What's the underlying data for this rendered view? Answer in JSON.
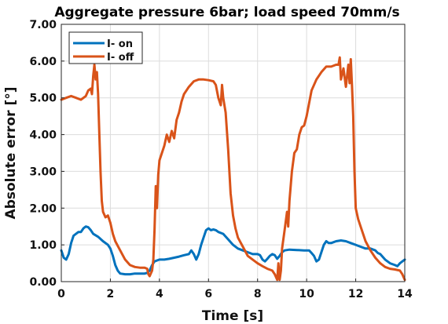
{
  "chart_data": {
    "type": "line",
    "title": "Aggregate pressure 6bar; load speed 70mm/s",
    "xlabel": "Time [s]",
    "ylabel": "Absolute error [°]",
    "xlim": [
      0,
      14
    ],
    "ylim": [
      0,
      7
    ],
    "xticks": [
      0,
      2,
      4,
      6,
      8,
      10,
      12,
      14
    ],
    "xtick_labels": [
      "0",
      "2",
      "4",
      "6",
      "8",
      "10",
      "12",
      "14"
    ],
    "yticks": [
      0,
      1,
      2,
      3,
      4,
      5,
      6,
      7
    ],
    "ytick_labels": [
      "0.00",
      "1.00",
      "2.00",
      "3.00",
      "4.00",
      "5.00",
      "6.00",
      "7.00"
    ],
    "grid": true,
    "legend_position": "top-left",
    "series": [
      {
        "name": "I- on",
        "color": "#0072BD",
        "points": [
          [
            0.0,
            0.85
          ],
          [
            0.1,
            0.65
          ],
          [
            0.2,
            0.6
          ],
          [
            0.3,
            0.75
          ],
          [
            0.4,
            1.05
          ],
          [
            0.5,
            1.25
          ],
          [
            0.6,
            1.3
          ],
          [
            0.7,
            1.35
          ],
          [
            0.8,
            1.35
          ],
          [
            0.9,
            1.45
          ],
          [
            1.0,
            1.5
          ],
          [
            1.1,
            1.48
          ],
          [
            1.2,
            1.4
          ],
          [
            1.3,
            1.3
          ],
          [
            1.5,
            1.22
          ],
          [
            1.7,
            1.1
          ],
          [
            1.9,
            1.0
          ],
          [
            2.0,
            0.9
          ],
          [
            2.1,
            0.7
          ],
          [
            2.2,
            0.45
          ],
          [
            2.3,
            0.3
          ],
          [
            2.4,
            0.22
          ],
          [
            2.6,
            0.2
          ],
          [
            2.8,
            0.2
          ],
          [
            3.0,
            0.22
          ],
          [
            3.2,
            0.22
          ],
          [
            3.4,
            0.22
          ],
          [
            3.5,
            0.24
          ],
          [
            3.6,
            0.3
          ],
          [
            3.7,
            0.45
          ],
          [
            3.8,
            0.55
          ],
          [
            4.0,
            0.6
          ],
          [
            4.2,
            0.6
          ],
          [
            4.4,
            0.62
          ],
          [
            4.6,
            0.65
          ],
          [
            4.8,
            0.68
          ],
          [
            5.0,
            0.72
          ],
          [
            5.2,
            0.75
          ],
          [
            5.3,
            0.85
          ],
          [
            5.4,
            0.75
          ],
          [
            5.5,
            0.6
          ],
          [
            5.6,
            0.75
          ],
          [
            5.7,
            1.0
          ],
          [
            5.8,
            1.2
          ],
          [
            5.9,
            1.4
          ],
          [
            6.0,
            1.45
          ],
          [
            6.1,
            1.4
          ],
          [
            6.2,
            1.42
          ],
          [
            6.3,
            1.4
          ],
          [
            6.4,
            1.35
          ],
          [
            6.6,
            1.3
          ],
          [
            6.8,
            1.15
          ],
          [
            7.0,
            1.0
          ],
          [
            7.2,
            0.9
          ],
          [
            7.4,
            0.85
          ],
          [
            7.6,
            0.8
          ],
          [
            7.8,
            0.75
          ],
          [
            8.0,
            0.75
          ],
          [
            8.1,
            0.72
          ],
          [
            8.2,
            0.6
          ],
          [
            8.3,
            0.55
          ],
          [
            8.4,
            0.62
          ],
          [
            8.5,
            0.7
          ],
          [
            8.6,
            0.75
          ],
          [
            8.7,
            0.72
          ],
          [
            8.8,
            0.62
          ],
          [
            8.9,
            0.7
          ],
          [
            9.0,
            0.8
          ],
          [
            9.1,
            0.85
          ],
          [
            9.3,
            0.87
          ],
          [
            9.6,
            0.86
          ],
          [
            9.9,
            0.85
          ],
          [
            10.1,
            0.85
          ],
          [
            10.2,
            0.78
          ],
          [
            10.3,
            0.7
          ],
          [
            10.4,
            0.55
          ],
          [
            10.5,
            0.6
          ],
          [
            10.6,
            0.8
          ],
          [
            10.7,
            1.0
          ],
          [
            10.8,
            1.1
          ],
          [
            10.9,
            1.05
          ],
          [
            11.0,
            1.05
          ],
          [
            11.2,
            1.1
          ],
          [
            11.4,
            1.12
          ],
          [
            11.6,
            1.1
          ],
          [
            11.8,
            1.05
          ],
          [
            12.0,
            1.0
          ],
          [
            12.2,
            0.95
          ],
          [
            12.4,
            0.9
          ],
          [
            12.6,
            0.9
          ],
          [
            12.8,
            0.85
          ],
          [
            12.9,
            0.78
          ],
          [
            13.0,
            0.75
          ],
          [
            13.2,
            0.6
          ],
          [
            13.4,
            0.5
          ],
          [
            13.6,
            0.45
          ],
          [
            13.7,
            0.42
          ],
          [
            13.8,
            0.5
          ],
          [
            13.9,
            0.55
          ],
          [
            14.0,
            0.6
          ]
        ]
      },
      {
        "name": "I- off",
        "color": "#D95319",
        "points": [
          [
            0.0,
            4.95
          ],
          [
            0.2,
            5.0
          ],
          [
            0.4,
            5.05
          ],
          [
            0.6,
            5.0
          ],
          [
            0.8,
            4.95
          ],
          [
            1.0,
            5.05
          ],
          [
            1.1,
            5.2
          ],
          [
            1.2,
            5.25
          ],
          [
            1.25,
            5.1
          ],
          [
            1.3,
            5.6
          ],
          [
            1.35,
            5.9
          ],
          [
            1.4,
            5.5
          ],
          [
            1.45,
            5.7
          ],
          [
            1.5,
            5.1
          ],
          [
            1.55,
            4.0
          ],
          [
            1.6,
            3.0
          ],
          [
            1.65,
            2.2
          ],
          [
            1.7,
            1.9
          ],
          [
            1.8,
            1.75
          ],
          [
            1.9,
            1.8
          ],
          [
            2.0,
            1.6
          ],
          [
            2.1,
            1.3
          ],
          [
            2.2,
            1.1
          ],
          [
            2.4,
            0.85
          ],
          [
            2.6,
            0.6
          ],
          [
            2.8,
            0.45
          ],
          [
            3.0,
            0.4
          ],
          [
            3.2,
            0.38
          ],
          [
            3.4,
            0.38
          ],
          [
            3.5,
            0.35
          ],
          [
            3.55,
            0.2
          ],
          [
            3.6,
            0.15
          ],
          [
            3.7,
            0.3
          ],
          [
            3.75,
            0.6
          ],
          [
            3.8,
            1.4
          ],
          [
            3.85,
            2.6
          ],
          [
            3.9,
            2.0
          ],
          [
            3.95,
            2.9
          ],
          [
            4.0,
            3.3
          ],
          [
            4.1,
            3.5
          ],
          [
            4.2,
            3.7
          ],
          [
            4.3,
            4.0
          ],
          [
            4.4,
            3.8
          ],
          [
            4.5,
            4.1
          ],
          [
            4.6,
            3.9
          ],
          [
            4.7,
            4.4
          ],
          [
            4.8,
            4.6
          ],
          [
            4.9,
            4.9
          ],
          [
            5.0,
            5.1
          ],
          [
            5.2,
            5.3
          ],
          [
            5.4,
            5.45
          ],
          [
            5.6,
            5.5
          ],
          [
            5.8,
            5.5
          ],
          [
            6.0,
            5.48
          ],
          [
            6.2,
            5.45
          ],
          [
            6.3,
            5.35
          ],
          [
            6.4,
            5.0
          ],
          [
            6.5,
            4.8
          ],
          [
            6.55,
            5.35
          ],
          [
            6.6,
            5.0
          ],
          [
            6.7,
            4.6
          ],
          [
            6.8,
            3.6
          ],
          [
            6.9,
            2.4
          ],
          [
            7.0,
            1.8
          ],
          [
            7.1,
            1.45
          ],
          [
            7.2,
            1.2
          ],
          [
            7.4,
            0.95
          ],
          [
            7.6,
            0.7
          ],
          [
            7.8,
            0.6
          ],
          [
            8.0,
            0.5
          ],
          [
            8.2,
            0.42
          ],
          [
            8.4,
            0.35
          ],
          [
            8.6,
            0.3
          ],
          [
            8.7,
            0.2
          ],
          [
            8.8,
            0.05
          ],
          [
            8.85,
            0.5
          ],
          [
            8.9,
            0.05
          ],
          [
            8.95,
            0.3
          ],
          [
            9.0,
            0.9
          ],
          [
            9.1,
            1.4
          ],
          [
            9.2,
            1.9
          ],
          [
            9.25,
            1.5
          ],
          [
            9.3,
            2.2
          ],
          [
            9.4,
            3.0
          ],
          [
            9.5,
            3.5
          ],
          [
            9.6,
            3.6
          ],
          [
            9.7,
            4.0
          ],
          [
            9.8,
            4.2
          ],
          [
            9.9,
            4.25
          ],
          [
            10.0,
            4.5
          ],
          [
            10.2,
            5.2
          ],
          [
            10.4,
            5.5
          ],
          [
            10.6,
            5.7
          ],
          [
            10.8,
            5.85
          ],
          [
            11.0,
            5.85
          ],
          [
            11.2,
            5.9
          ],
          [
            11.3,
            5.9
          ],
          [
            11.35,
            6.1
          ],
          [
            11.4,
            5.5
          ],
          [
            11.5,
            5.8
          ],
          [
            11.6,
            5.3
          ],
          [
            11.7,
            5.9
          ],
          [
            11.75,
            5.4
          ],
          [
            11.8,
            6.05
          ],
          [
            11.85,
            5.3
          ],
          [
            11.9,
            4.5
          ],
          [
            11.95,
            3.0
          ],
          [
            12.0,
            2.0
          ],
          [
            12.1,
            1.7
          ],
          [
            12.2,
            1.5
          ],
          [
            12.4,
            1.1
          ],
          [
            12.6,
            0.85
          ],
          [
            12.8,
            0.65
          ],
          [
            13.0,
            0.5
          ],
          [
            13.2,
            0.4
          ],
          [
            13.4,
            0.35
          ],
          [
            13.6,
            0.33
          ],
          [
            13.8,
            0.3
          ],
          [
            13.9,
            0.2
          ],
          [
            14.0,
            0.05
          ]
        ]
      }
    ]
  }
}
